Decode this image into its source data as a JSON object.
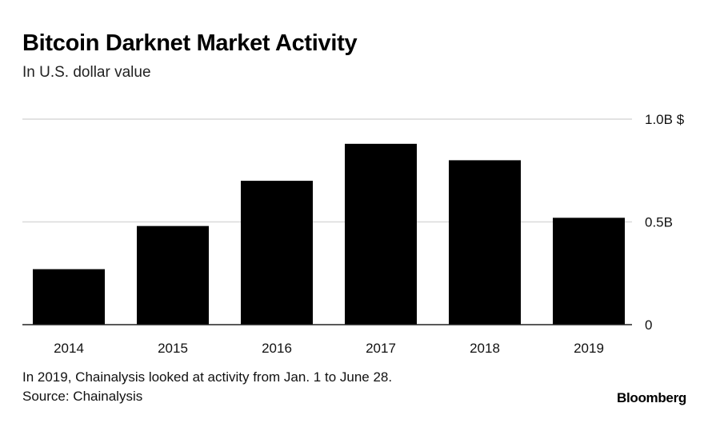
{
  "chart_data": {
    "type": "bar",
    "title": "Bitcoin Darknet Market Activity",
    "subtitle": "In U.S. dollar value",
    "categories": [
      "2014",
      "2015",
      "2016",
      "2017",
      "2018",
      "2019"
    ],
    "values": [
      0.27,
      0.48,
      0.7,
      0.88,
      0.8,
      0.52
    ],
    "unit": "B $",
    "ylim": [
      0,
      1.0
    ],
    "yticks": [
      {
        "value": 0,
        "label": "0"
      },
      {
        "value": 0.5,
        "label": "0.5B"
      },
      {
        "value": 1.0,
        "label": "1.0B $"
      }
    ],
    "grid": true,
    "y_axis_side": "right",
    "bar_color": "#000000",
    "grid_color": "#d9d9d9"
  },
  "footnote": "In 2019, Chainalysis looked at activity from Jan. 1 to June 28.",
  "source": "Source: Chainalysis",
  "brand": "Bloomberg"
}
